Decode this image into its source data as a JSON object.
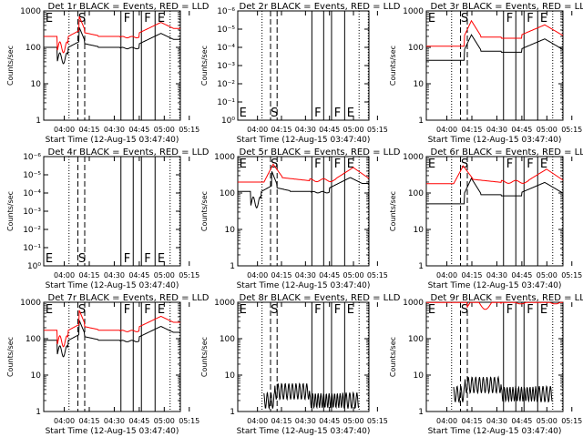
{
  "chart_data": [
    {
      "type": "line",
      "title": "Det 1r BLACK = Events, RED = LLD",
      "xlabel": "Start Time (12-Aug-15 03:47:40)",
      "ylabel": "Counts/sec",
      "yscale": "log",
      "ylim": [
        1,
        1000
      ],
      "yticks": [
        "1",
        "10",
        "100",
        "1000"
      ],
      "xticks": [
        "04:00",
        "04:15",
        "04:30",
        "04:45",
        "05:00",
        "05:15"
      ],
      "markers": [
        "E",
        "S",
        "F",
        "F",
        "E"
      ],
      "series": [
        {
          "name": "Events",
          "color": "#000000",
          "profile": "A",
          "base": 100
        },
        {
          "name": "LLD",
          "color": "#ff0000",
          "profile": "A",
          "base": 200
        }
      ]
    },
    {
      "type": "line",
      "title": "Det 2r BLACK = Events, RED = LLD",
      "xlabel": "Start Time (12-Aug-15 03:47:40)",
      "ylabel": "Counts/sec",
      "yscale": "log",
      "ylim": [
        1,
        1e-06
      ],
      "yticks": [
        "10⁰",
        "10⁻¹",
        "10⁻²",
        "10⁻³",
        "10⁻⁴",
        "10⁻⁵",
        "10⁻⁶"
      ],
      "xticks": [
        "04:00",
        "04:15",
        "04:30",
        "04:45",
        "05:00",
        "05:15"
      ],
      "markers": [
        "E",
        "S",
        "F",
        "F",
        "E"
      ],
      "series": []
    },
    {
      "type": "line",
      "title": "Det 3r BLACK = Events, RED = LLD",
      "xlabel": "Start Time (12-Aug-15 03:47:40)",
      "ylabel": "Counts/sec",
      "yscale": "log",
      "ylim": [
        1,
        1000
      ],
      "yticks": [
        "1",
        "10",
        "100",
        "1000"
      ],
      "xticks": [
        "04:00",
        "04:15",
        "04:30",
        "04:45",
        "05:00",
        "05:15"
      ],
      "markers": [
        "E",
        "S",
        "F",
        "F",
        "E"
      ],
      "series": [
        {
          "name": "Events",
          "color": "#000000",
          "profile": "B",
          "base": 70
        },
        {
          "name": "LLD",
          "color": "#ff0000",
          "profile": "B",
          "base": 170
        }
      ]
    },
    {
      "type": "line",
      "title": "Det 4r BLACK = Events, RED = LLD",
      "xlabel": "Start Time (12-Aug-15 03:47:40)",
      "ylabel": "Counts/sec",
      "yscale": "log",
      "ylim": [
        1,
        1e-06
      ],
      "yticks": [
        "10⁰",
        "10⁻¹",
        "10⁻²",
        "10⁻³",
        "10⁻⁴",
        "10⁻⁵",
        "10⁻⁶"
      ],
      "xticks": [
        "04:00",
        "04:15",
        "04:30",
        "04:45",
        "05:00",
        "05:15"
      ],
      "markers": [
        "E",
        "S",
        "F",
        "F",
        "E"
      ],
      "series": []
    },
    {
      "type": "line",
      "title": "Det 5r BLACK = Events, RED = LLD",
      "xlabel": "Start Time (12-Aug-15 03:47:40)",
      "ylabel": "Counts/sec",
      "yscale": "log",
      "ylim": [
        1,
        1000
      ],
      "yticks": [
        "1",
        "10",
        "100",
        "1000"
      ],
      "xticks": [
        "04:00",
        "04:15",
        "04:30",
        "04:45",
        "05:00",
        "05:15"
      ],
      "markers": [
        "E",
        "S",
        "F",
        "F",
        "E"
      ],
      "series": [
        {
          "name": "Events",
          "color": "#000000",
          "profile": "A",
          "base": 110
        },
        {
          "name": "LLD",
          "color": "#ff0000",
          "profile": "C",
          "base": 200
        }
      ]
    },
    {
      "type": "line",
      "title": "Det 6r BLACK = Events, RED = LLD",
      "xlabel": "Start Time (12-Aug-15 03:47:40)",
      "ylabel": "Counts/sec",
      "yscale": "log",
      "ylim": [
        1,
        1000
      ],
      "yticks": [
        "1",
        "10",
        "100",
        "1000"
      ],
      "xticks": [
        "04:00",
        "04:15",
        "04:30",
        "04:45",
        "05:00",
        "05:15"
      ],
      "markers": [
        "E",
        "S",
        "F",
        "F",
        "E"
      ],
      "series": [
        {
          "name": "Events",
          "color": "#000000",
          "profile": "B",
          "base": 80
        },
        {
          "name": "LLD",
          "color": "#ff0000",
          "profile": "C",
          "base": 180
        }
      ]
    },
    {
      "type": "line",
      "title": "Det 7r BLACK = Events, RED = LLD",
      "xlabel": "Start Time (12-Aug-15 03:47:40)",
      "ylabel": "Counts/sec",
      "yscale": "log",
      "ylim": [
        1,
        1000
      ],
      "yticks": [
        "1",
        "10",
        "100",
        "1000"
      ],
      "xticks": [
        "04:00",
        "04:15",
        "04:30",
        "04:45",
        "05:00",
        "05:15"
      ],
      "markers": [
        "E",
        "S",
        "F",
        "F",
        "E"
      ],
      "series": [
        {
          "name": "Events",
          "color": "#000000",
          "profile": "A",
          "base": 90
        },
        {
          "name": "LLD",
          "color": "#ff0000",
          "profile": "A",
          "base": 170
        }
      ]
    },
    {
      "type": "line",
      "title": "Det 8r BLACK = Events, RED = LLD",
      "xlabel": "Start Time (12-Aug-15 03:47:40)",
      "ylabel": "Counts/sec",
      "yscale": "log",
      "ylim": [
        1,
        1000
      ],
      "yticks": [
        "1",
        "10",
        "100",
        "1000"
      ],
      "xticks": [
        "04:00",
        "04:15",
        "04:30",
        "04:45",
        "05:00",
        "05:15"
      ],
      "markers": [
        "E",
        "S",
        "F",
        "F",
        "E"
      ],
      "series": [
        {
          "name": "Events",
          "color": "#000000",
          "profile": "N",
          "base": 2
        }
      ]
    },
    {
      "type": "line",
      "title": "Det 9r BLACK = Events, RED = LLD",
      "xlabel": "Start Time (12-Aug-15 03:47:40)",
      "ylabel": "Counts/sec",
      "yscale": "log",
      "ylim": [
        1,
        1000
      ],
      "yticks": [
        "1",
        "10",
        "100",
        "1000"
      ],
      "xticks": [
        "04:00",
        "04:15",
        "04:30",
        "04:45",
        "05:00",
        "05:15"
      ],
      "markers": [
        "E",
        "S",
        "F",
        "F",
        "E"
      ],
      "series": [
        {
          "name": "Events",
          "color": "#000000",
          "profile": "N",
          "base": 3
        },
        {
          "name": "LLD",
          "color": "#ff0000",
          "profile": "D",
          "base": 900
        }
      ]
    }
  ]
}
